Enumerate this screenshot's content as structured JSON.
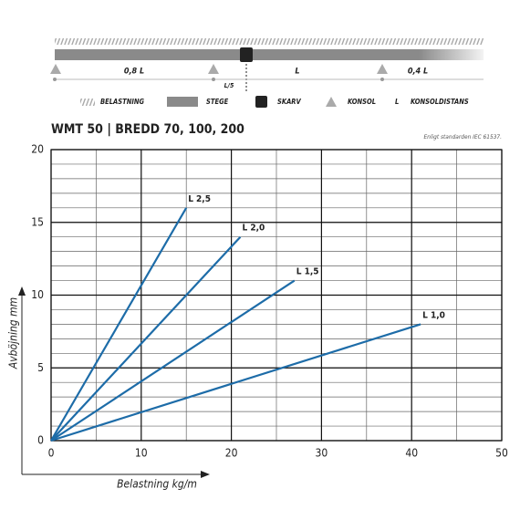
{
  "diagram": {
    "dims": {
      "left": "0,8 L",
      "middle": "L",
      "right": "0,4 L",
      "joint": "L/5"
    },
    "legend": [
      "BELASTNING",
      "STEGE",
      "SKARV",
      "KONSOL",
      "L",
      "KONSOLDISTANS"
    ]
  },
  "chart_data": {
    "type": "line",
    "title": "WMT 50 | BREDD 70, 100, 200",
    "note": "Enligt standarden IEC 61537.",
    "x_label": "Belastning kg/m",
    "y_label": "Avböjning mm",
    "xlim": [
      0,
      50
    ],
    "xticks": [
      0,
      10,
      20,
      30,
      40,
      50
    ],
    "ylim": [
      0,
      20
    ],
    "yticks": [
      0,
      5,
      10,
      15,
      20
    ],
    "grid": true,
    "minor_grid": {
      "x": 5,
      "y": 1
    },
    "series": [
      {
        "name": "L 2,5",
        "color": "#1d6ca8",
        "x": [
          0,
          15
        ],
        "values": [
          0,
          16
        ]
      },
      {
        "name": "L 2,0",
        "color": "#1d6ca8",
        "x": [
          0,
          21
        ],
        "values": [
          0,
          14
        ]
      },
      {
        "name": "L 1,5",
        "color": "#1d6ca8",
        "x": [
          0,
          27
        ],
        "values": [
          0,
          11
        ]
      },
      {
        "name": "L 1,0",
        "color": "#1d6ca8",
        "x": [
          0,
          41
        ],
        "values": [
          0,
          8
        ]
      }
    ]
  }
}
